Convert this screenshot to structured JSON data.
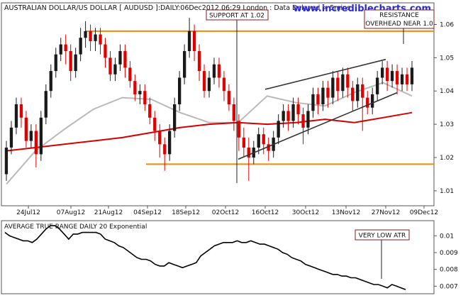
{
  "header": {
    "title": "AUSTRALIAN DOLLAR/US DOLLAR [ AUDUSD ]:DAILY:06Dec2012 06:29 London : Data Delayed > 5mins",
    "watermark": "www.incrediblecharts.com"
  },
  "annotations": {
    "support": "SUPPORT AT 1.02",
    "resistance_line1": "RESISTANCE",
    "resistance_line2": "OVERHEAD NEAR 1.0",
    "atr_note": "VERY LOW ATR"
  },
  "indicator": {
    "title": "AVERAGE TRUE RANGE DAILY 20 Exponential"
  },
  "colors": {
    "up": "#1a1a1a",
    "down": "#e00000",
    "ma_long": "#d40000",
    "ma_short": "#b9b9b9",
    "level": "#f08a00",
    "callout_border": "#8b1a1a",
    "atr_line": "#000000"
  },
  "chart_data": [
    {
      "type": "candlestick",
      "title": "AUSTRALIAN DOLLAR/US DOLLAR [ AUDUSD ]:DAILY:06Dec2012 06:29 London : Data Delayed > 5mins",
      "x_ticks": [
        "24Jul12",
        "07Aug12",
        "21Aug12",
        "04Sep12",
        "18Sep12",
        "02Oct12",
        "16Oct12",
        "30Oct12",
        "13Nov12",
        "27Nov12",
        "09Dec12"
      ],
      "y_ticks": [
        "1.01",
        "1.02",
        "1.03",
        "1.04",
        "1.05",
        "1.06"
      ],
      "ylim": [
        1.0055,
        1.0665
      ],
      "levels": [
        {
          "label": "RESISTANCE OVERHEAD NEAR 1.0",
          "value": 1.058
        },
        {
          "label": "SUPPORT AT 1.02",
          "value": 1.018
        }
      ],
      "channel_lines": [
        {
          "points": [
            [
              "16Oct12",
              1.0405
            ],
            [
              "27Nov12",
              1.0495
            ]
          ]
        },
        {
          "points": [
            [
              "13Oct12",
              1.0195
            ],
            [
              "29Nov12",
              1.0395
            ]
          ]
        }
      ],
      "ma_long": [
        1.022,
        1.023,
        1.024,
        1.025,
        1.026,
        1.0275,
        1.029,
        1.03,
        1.0305,
        1.03,
        1.0305,
        1.0315,
        1.0305,
        1.032,
        1.0335
      ],
      "ma_short": [
        1.012,
        1.022,
        1.0285,
        1.0345,
        1.038,
        1.0375,
        1.0335,
        1.0305,
        1.0305,
        1.0385,
        1.0365,
        1.0355,
        1.0395,
        1.0425,
        1.0385
      ],
      "candles": [
        [
          1.015,
          1.023,
          1.013,
          1.025
        ],
        [
          1.023,
          1.029,
          1.021,
          1.031
        ],
        [
          1.029,
          1.036,
          1.027,
          1.038
        ],
        [
          1.036,
          1.032,
          1.029,
          1.038
        ],
        [
          1.032,
          1.025,
          1.023,
          1.034
        ],
        [
          1.025,
          1.028,
          1.023,
          1.03
        ],
        [
          1.028,
          1.021,
          1.017,
          1.03
        ],
        [
          1.021,
          1.032,
          1.019,
          1.034
        ],
        [
          1.032,
          1.04,
          1.03,
          1.042
        ],
        [
          1.04,
          1.046,
          1.038,
          1.048
        ],
        [
          1.046,
          1.051,
          1.044,
          1.053
        ],
        [
          1.051,
          1.054,
          1.049,
          1.056
        ],
        [
          1.054,
          1.052,
          1.048,
          1.057
        ],
        [
          1.052,
          1.046,
          1.043,
          1.054
        ],
        [
          1.046,
          1.051,
          1.044,
          1.053
        ],
        [
          1.051,
          1.056,
          1.049,
          1.059
        ],
        [
          1.056,
          1.058,
          1.053,
          1.061
        ],
        [
          1.058,
          1.055,
          1.052,
          1.06
        ],
        [
          1.055,
          1.057,
          1.052,
          1.059
        ],
        [
          1.057,
          1.054,
          1.051,
          1.059
        ],
        [
          1.054,
          1.05,
          1.047,
          1.056
        ],
        [
          1.05,
          1.045,
          1.043,
          1.052
        ],
        [
          1.045,
          1.048,
          1.043,
          1.05
        ],
        [
          1.048,
          1.052,
          1.046,
          1.054
        ],
        [
          1.052,
          1.047,
          1.044,
          1.054
        ],
        [
          1.047,
          1.043,
          1.041,
          1.049
        ],
        [
          1.043,
          1.039,
          1.037,
          1.045
        ],
        [
          1.039,
          1.04,
          1.036,
          1.042
        ],
        [
          1.04,
          1.036,
          1.034,
          1.042
        ],
        [
          1.036,
          1.032,
          1.03,
          1.038
        ],
        [
          1.032,
          1.028,
          1.025,
          1.034
        ],
        [
          1.028,
          1.024,
          1.02,
          1.03
        ],
        [
          1.024,
          1.021,
          1.016,
          1.026
        ],
        [
          1.021,
          1.028,
          1.019,
          1.03
        ],
        [
          1.028,
          1.036,
          1.026,
          1.038
        ],
        [
          1.036,
          1.044,
          1.034,
          1.046
        ],
        [
          1.044,
          1.052,
          1.042,
          1.054
        ],
        [
          1.052,
          1.058,
          1.05,
          1.062
        ],
        [
          1.058,
          1.052,
          1.049,
          1.06
        ],
        [
          1.052,
          1.046,
          1.043,
          1.054
        ],
        [
          1.046,
          1.04,
          1.038,
          1.048
        ],
        [
          1.04,
          1.044,
          1.038,
          1.046
        ],
        [
          1.044,
          1.048,
          1.042,
          1.05
        ],
        [
          1.048,
          1.044,
          1.041,
          1.05
        ],
        [
          1.044,
          1.04,
          1.037,
          1.046
        ],
        [
          1.04,
          1.036,
          1.034,
          1.042
        ],
        [
          1.036,
          1.031,
          1.028,
          1.038
        ],
        [
          1.031,
          1.026,
          1.022,
          1.033
        ],
        [
          1.026,
          1.023,
          1.02,
          1.029
        ],
        [
          1.023,
          1.02,
          1.013,
          1.026
        ],
        [
          1.02,
          1.023,
          1.018,
          1.025
        ],
        [
          1.023,
          1.027,
          1.021,
          1.029
        ],
        [
          1.027,
          1.024,
          1.021,
          1.029
        ],
        [
          1.024,
          1.022,
          1.019,
          1.026
        ],
        [
          1.022,
          1.026,
          1.02,
          1.028
        ],
        [
          1.026,
          1.031,
          1.024,
          1.033
        ],
        [
          1.031,
          1.034,
          1.029,
          1.036
        ],
        [
          1.034,
          1.031,
          1.028,
          1.036
        ],
        [
          1.031,
          1.036,
          1.029,
          1.038
        ],
        [
          1.036,
          1.033,
          1.03,
          1.038
        ],
        [
          1.033,
          1.029,
          1.024,
          1.035
        ],
        [
          1.029,
          1.034,
          1.027,
          1.036
        ],
        [
          1.034,
          1.039,
          1.032,
          1.041
        ],
        [
          1.039,
          1.036,
          1.033,
          1.041
        ],
        [
          1.036,
          1.041,
          1.034,
          1.043
        ],
        [
          1.041,
          1.038,
          1.035,
          1.043
        ],
        [
          1.038,
          1.044,
          1.036,
          1.046
        ],
        [
          1.044,
          1.04,
          1.037,
          1.046
        ],
        [
          1.04,
          1.045,
          1.038,
          1.047
        ],
        [
          1.045,
          1.041,
          1.038,
          1.047
        ],
        [
          1.041,
          1.037,
          1.034,
          1.043
        ],
        [
          1.037,
          1.042,
          1.035,
          1.044
        ],
        [
          1.042,
          1.038,
          1.028,
          1.044
        ],
        [
          1.038,
          1.035,
          1.033,
          1.04
        ],
        [
          1.035,
          1.039,
          1.033,
          1.041
        ],
        [
          1.039,
          1.044,
          1.037,
          1.046
        ],
        [
          1.044,
          1.047,
          1.042,
          1.049
        ],
        [
          1.047,
          1.043,
          1.04,
          1.049
        ],
        [
          1.043,
          1.046,
          1.041,
          1.048
        ],
        [
          1.046,
          1.042,
          1.039,
          1.048
        ],
        [
          1.042,
          1.045,
          1.04,
          1.047
        ],
        [
          1.045,
          1.042,
          1.04,
          1.047
        ],
        [
          1.042,
          1.047,
          1.04,
          1.049
        ]
      ]
    },
    {
      "type": "line",
      "title": "AVERAGE TRUE RANGE DAILY 20 Exponential",
      "y_ticks": [
        "0.007",
        "0.008",
        "0.009",
        "0.01"
      ],
      "ylim": [
        0.00655,
        0.0109
      ],
      "values": [
        0.0102,
        0.01,
        0.0099,
        0.0098,
        0.0097,
        0.0097,
        0.0096,
        0.0098,
        0.0101,
        0.0104,
        0.0106,
        0.0106,
        0.0104,
        0.0101,
        0.0098,
        0.0101,
        0.0101,
        0.0102,
        0.0102,
        0.0102,
        0.0102,
        0.0101,
        0.0098,
        0.0097,
        0.0096,
        0.0094,
        0.0093,
        0.0091,
        0.0089,
        0.0087,
        0.0086,
        0.0086,
        0.0085,
        0.0083,
        0.0082,
        0.0082,
        0.0084,
        0.0083,
        0.0082,
        0.0081,
        0.0082,
        0.0083,
        0.0084,
        0.0088,
        0.009,
        0.0092,
        0.0094,
        0.0095,
        0.0096,
        0.0096,
        0.0096,
        0.0097,
        0.0096,
        0.0096,
        0.0097,
        0.0096,
        0.0095,
        0.0095,
        0.0094,
        0.0093,
        0.0092,
        0.009,
        0.0089,
        0.0087,
        0.0086,
        0.0085,
        0.0083,
        0.0082,
        0.0081,
        0.008,
        0.0079,
        0.0078,
        0.0077,
        0.0077,
        0.0076,
        0.0076,
        0.0075,
        0.0075,
        0.0074,
        0.0073,
        0.0072,
        0.0071,
        0.0071,
        0.007,
        0.0069,
        0.0071,
        0.007,
        0.0069,
        0.0068
      ]
    }
  ]
}
